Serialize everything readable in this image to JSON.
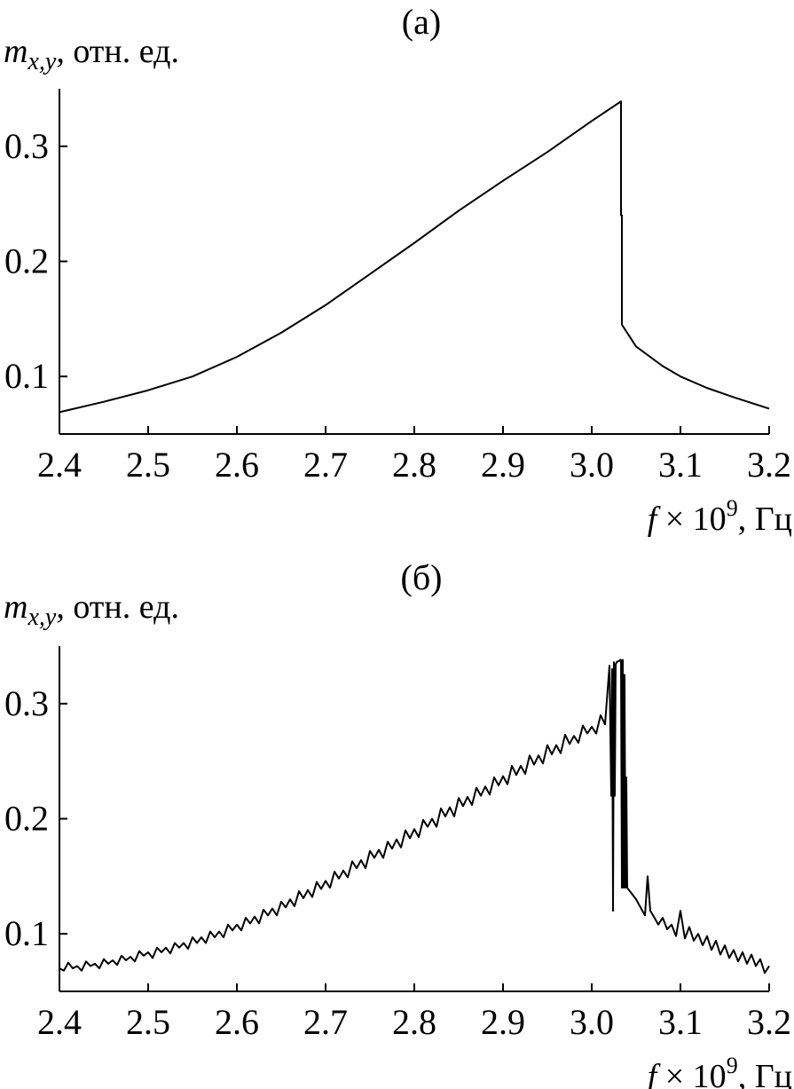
{
  "chart_data": [
    {
      "type": "line",
      "panel_label": "(а)",
      "ylabel": "m",
      "ylabel_sub": "x,y",
      "ylabel_suffix": ", отн. ед.",
      "xlabel_var": "f",
      "xlabel_mid": " × 10",
      "xlabel_sup": "9",
      "xlabel_suffix": ", Гц",
      "xlim": [
        2.4,
        3.2
      ],
      "ylim": [
        0.05,
        0.35
      ],
      "xticks": [
        2.4,
        2.5,
        2.6,
        2.7,
        2.8,
        2.9,
        3.0,
        3.1,
        3.2
      ],
      "xtick_labels": [
        "2.4",
        "2.5",
        "2.6",
        "2.7",
        "2.8",
        "2.9",
        "3.0",
        "3.1",
        "3.2"
      ],
      "yticks": [
        0.1,
        0.2,
        0.3
      ],
      "ytick_labels": [
        "0.1",
        "0.2",
        "0.3"
      ],
      "grid": false,
      "color": "#000000",
      "series": [
        {
          "x": [
            2.4,
            2.45,
            2.5,
            2.55,
            2.6,
            2.65,
            2.7,
            2.75,
            2.8,
            2.85,
            2.9,
            2.95,
            3.0,
            3.033,
            3.033,
            3.034,
            3.034,
            3.05,
            3.08,
            3.1,
            3.13,
            3.16,
            3.2
          ],
          "y": [
            0.069,
            0.078,
            0.088,
            0.1,
            0.117,
            0.138,
            0.162,
            0.189,
            0.216,
            0.244,
            0.27,
            0.295,
            0.322,
            0.339,
            0.24,
            0.24,
            0.145,
            0.126,
            0.109,
            0.1,
            0.09,
            0.082,
            0.072
          ]
        }
      ]
    },
    {
      "type": "line",
      "panel_label": "(б)",
      "ylabel": "m",
      "ylabel_sub": "x,y",
      "ylabel_suffix": ", отн. ед.",
      "xlabel_var": "f",
      "xlabel_mid": " × 10",
      "xlabel_sup": "9",
      "xlabel_suffix": ", Гц",
      "xlim": [
        2.4,
        3.2
      ],
      "ylim": [
        0.05,
        0.35
      ],
      "xticks": [
        2.4,
        2.5,
        2.6,
        2.7,
        2.8,
        2.9,
        3.0,
        3.1,
        3.2
      ],
      "xtick_labels": [
        "2.4",
        "2.5",
        "2.6",
        "2.7",
        "2.8",
        "2.9",
        "3.0",
        "3.1",
        "3.2"
      ],
      "yticks": [
        0.1,
        0.2,
        0.3
      ],
      "ytick_labels": [
        "0.1",
        "0.2",
        "0.3"
      ],
      "grid": false,
      "color": "#000000",
      "series": [
        {
          "x": [
            2.4,
            2.405,
            2.41,
            2.415,
            2.42,
            2.425,
            2.43,
            2.435,
            2.44,
            2.445,
            2.45,
            2.455,
            2.46,
            2.465,
            2.47,
            2.475,
            2.48,
            2.485,
            2.49,
            2.495,
            2.5,
            2.505,
            2.51,
            2.515,
            2.52,
            2.525,
            2.53,
            2.535,
            2.54,
            2.545,
            2.55,
            2.555,
            2.56,
            2.565,
            2.57,
            2.575,
            2.58,
            2.585,
            2.59,
            2.595,
            2.6,
            2.605,
            2.61,
            2.615,
            2.62,
            2.625,
            2.63,
            2.635,
            2.64,
            2.645,
            2.65,
            2.655,
            2.66,
            2.665,
            2.67,
            2.675,
            2.68,
            2.685,
            2.69,
            2.695,
            2.7,
            2.705,
            2.71,
            2.715,
            2.72,
            2.725,
            2.73,
            2.735,
            2.74,
            2.745,
            2.75,
            2.755,
            2.76,
            2.765,
            2.77,
            2.775,
            2.78,
            2.785,
            2.79,
            2.795,
            2.8,
            2.805,
            2.81,
            2.815,
            2.82,
            2.825,
            2.83,
            2.835,
            2.84,
            2.845,
            2.85,
            2.855,
            2.86,
            2.865,
            2.87,
            2.875,
            2.88,
            2.885,
            2.89,
            2.895,
            2.9,
            2.905,
            2.91,
            2.915,
            2.92,
            2.925,
            2.93,
            2.935,
            2.94,
            2.945,
            2.95,
            2.955,
            2.96,
            2.965,
            2.97,
            2.975,
            2.98,
            2.985,
            2.99,
            2.995,
            3.0,
            3.005,
            3.01,
            3.015,
            3.02,
            3.022,
            3.023,
            3.024,
            3.025,
            3.026,
            3.027,
            3.028,
            3.03,
            3.031,
            3.032,
            3.033,
            3.034,
            3.035,
            3.036,
            3.037,
            3.038,
            3.039,
            3.04,
            3.045,
            3.05,
            3.055,
            3.06,
            3.063,
            3.066,
            3.07,
            3.075,
            3.08,
            3.085,
            3.09,
            3.095,
            3.1,
            3.105,
            3.11,
            3.115,
            3.12,
            3.125,
            3.13,
            3.135,
            3.14,
            3.145,
            3.15,
            3.155,
            3.16,
            3.165,
            3.17,
            3.175,
            3.18,
            3.185,
            3.19,
            3.195,
            3.2
          ],
          "y": [
            0.07,
            0.068,
            0.075,
            0.07,
            0.072,
            0.068,
            0.076,
            0.072,
            0.074,
            0.07,
            0.078,
            0.074,
            0.077,
            0.073,
            0.081,
            0.077,
            0.08,
            0.076,
            0.085,
            0.081,
            0.084,
            0.079,
            0.088,
            0.084,
            0.088,
            0.083,
            0.092,
            0.088,
            0.092,
            0.087,
            0.097,
            0.092,
            0.097,
            0.092,
            0.102,
            0.097,
            0.102,
            0.097,
            0.108,
            0.103,
            0.108,
            0.103,
            0.114,
            0.109,
            0.115,
            0.109,
            0.121,
            0.116,
            0.122,
            0.116,
            0.128,
            0.123,
            0.13,
            0.124,
            0.137,
            0.131,
            0.138,
            0.132,
            0.145,
            0.139,
            0.146,
            0.14,
            0.154,
            0.148,
            0.155,
            0.149,
            0.163,
            0.157,
            0.164,
            0.157,
            0.172,
            0.166,
            0.173,
            0.166,
            0.18,
            0.174,
            0.182,
            0.175,
            0.19,
            0.183,
            0.191,
            0.184,
            0.199,
            0.193,
            0.2,
            0.193,
            0.209,
            0.202,
            0.21,
            0.202,
            0.218,
            0.211,
            0.219,
            0.212,
            0.227,
            0.22,
            0.228,
            0.221,
            0.236,
            0.229,
            0.237,
            0.23,
            0.246,
            0.238,
            0.246,
            0.239,
            0.255,
            0.247,
            0.255,
            0.248,
            0.264,
            0.256,
            0.264,
            0.257,
            0.273,
            0.265,
            0.272,
            0.266,
            0.281,
            0.274,
            0.28,
            0.274,
            0.29,
            0.282,
            0.333,
            0.22,
            0.33,
            0.12,
            0.336,
            0.22,
            0.334,
            0.336,
            0.337,
            0.337,
            0.338,
            0.338,
            0.14,
            0.338,
            0.14,
            0.325,
            0.14,
            0.236,
            0.14,
            0.135,
            0.13,
            0.123,
            0.116,
            0.15,
            0.12,
            0.115,
            0.108,
            0.114,
            0.104,
            0.108,
            0.098,
            0.12,
            0.096,
            0.106,
            0.094,
            0.1,
            0.09,
            0.098,
            0.086,
            0.094,
            0.082,
            0.09,
            0.079,
            0.086,
            0.076,
            0.084,
            0.074,
            0.082,
            0.072,
            0.078,
            0.066,
            0.072
          ]
        }
      ]
    }
  ]
}
